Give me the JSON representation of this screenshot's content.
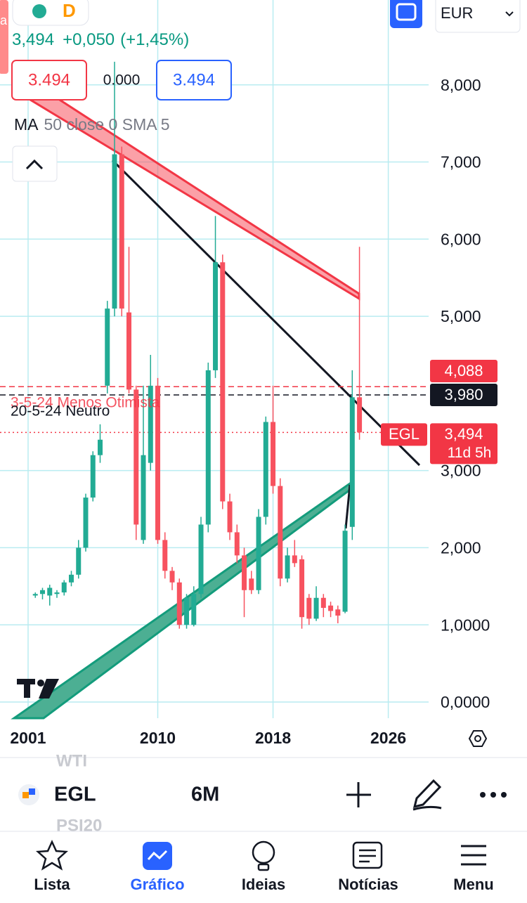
{
  "header": {
    "side_tag": "a",
    "pill_letter": "D",
    "price": "3,494",
    "change": "+0,050",
    "change_pct": "(+1,45%)",
    "bid": "3.494",
    "spread": "0.000",
    "ask": "3.494",
    "indicator_name": "MA",
    "indicator_params": "50 close 0 SMA 5",
    "currency": "EUR"
  },
  "chart_data": {
    "type": "candlestick",
    "x": [
      2001.5,
      2002,
      2002.5,
      2003,
      2003.5,
      2004,
      2004.5,
      2005,
      2005.5,
      2006,
      2006.5,
      2007,
      2007.5,
      2008,
      2008.5,
      2009,
      2009.5,
      2010,
      2010.5,
      2011,
      2011.5,
      2012,
      2012.5,
      2013,
      2013.5,
      2014,
      2014.5,
      2015,
      2015.5,
      2016,
      2016.5,
      2017,
      2017.5,
      2018,
      2018.5,
      2019,
      2019.5,
      2020,
      2020.5,
      2021,
      2021.5,
      2022,
      2022.5,
      2023,
      2023.5,
      2024
    ],
    "open": [
      1.38,
      1.4,
      1.38,
      1.4,
      1.42,
      1.55,
      1.65,
      2.0,
      2.65,
      3.2,
      4.1,
      5.1,
      7.1,
      5.05,
      4.05,
      2.1,
      3.1,
      4.1,
      2.1,
      1.7,
      1.55,
      1.0,
      1.0,
      1.4,
      2.3,
      4.3,
      5.7,
      2.6,
      2.2,
      1.9,
      1.6,
      1.45,
      2.4,
      3.63,
      2.8,
      1.6,
      1.9,
      1.85,
      1.35,
      1.08,
      1.35,
      1.25,
      1.2,
      1.17,
      2.27,
      3.95
    ],
    "high": [
      1.42,
      1.48,
      1.52,
      1.45,
      1.58,
      1.7,
      2.1,
      2.7,
      3.25,
      3.6,
      5.2,
      8.3,
      7.2,
      5.9,
      4.1,
      4.1,
      4.5,
      4.2,
      2.2,
      1.75,
      1.6,
      1.4,
      1.5,
      2.4,
      4.4,
      6.3,
      5.8,
      2.7,
      2.3,
      2.0,
      1.7,
      2.5,
      3.7,
      4.1,
      2.9,
      2.0,
      2.1,
      1.9,
      1.4,
      1.5,
      1.4,
      1.3,
      1.25,
      2.3,
      4.3,
      5.9
    ],
    "low": [
      1.35,
      1.33,
      1.25,
      1.35,
      1.38,
      1.5,
      1.6,
      1.95,
      2.6,
      3.1,
      4.0,
      5.0,
      5.0,
      4.0,
      2.1,
      2.05,
      3.0,
      2.05,
      1.6,
      1.45,
      0.95,
      0.95,
      0.98,
      1.35,
      2.2,
      4.2,
      2.5,
      2.1,
      1.8,
      1.1,
      1.4,
      1.4,
      2.3,
      2.7,
      1.5,
      1.55,
      1.75,
      0.95,
      1.0,
      1.05,
      1.1,
      1.1,
      1.02,
      1.15,
      2.1,
      3.4
    ],
    "close": [
      1.4,
      1.45,
      1.48,
      1.42,
      1.55,
      1.65,
      2.0,
      2.65,
      3.2,
      3.4,
      5.1,
      7.1,
      5.1,
      4.05,
      2.3,
      3.2,
      4.1,
      2.1,
      1.7,
      1.55,
      1.0,
      1.35,
      1.4,
      2.3,
      4.3,
      5.7,
      2.6,
      2.2,
      1.9,
      1.45,
      1.45,
      2.4,
      3.63,
      2.8,
      1.6,
      1.9,
      1.8,
      1.1,
      1.08,
      1.35,
      1.22,
      1.18,
      1.12,
      2.22,
      3.95,
      3.494
    ],
    "up_color": "#22ab94",
    "down_color": "#f7525f",
    "xlim": [
      1999.05,
      2028.8
    ],
    "xticks": [
      2001,
      2010,
      2018,
      2026
    ],
    "ylim": [
      -0.21,
      9.1
    ],
    "yticks": [
      {
        "value": 0,
        "label": "0,0000"
      },
      {
        "value": 1,
        "label": "1,0000"
      },
      {
        "value": 2,
        "label": "2,000"
      },
      {
        "value": 3,
        "label": "3,000"
      },
      {
        "value": 5,
        "label": "5,000"
      },
      {
        "value": 6,
        "label": "6,000"
      },
      {
        "value": 7,
        "label": "7,000"
      },
      {
        "value": 8,
        "label": "8,000"
      }
    ],
    "grid": true,
    "annotations": [
      "3-5-24 Menos Otimista",
      "20-5-24 Neutro"
    ],
    "price_lines": [
      {
        "value": 4.088,
        "label": "4,088",
        "color": "#f23645",
        "style": "dashed"
      },
      {
        "value": 3.98,
        "label": "3,980",
        "color": "#131722",
        "style": "dashed"
      },
      {
        "value": 3.494,
        "label": "3,494",
        "color": "#f23645",
        "style": "dotted",
        "symbol": "EGL",
        "countdown": "11d 5h"
      }
    ]
  },
  "toolbar": {
    "ghost_above": "WTI",
    "symbol": "EGL",
    "interval": "6M",
    "ghost_below": "PSI20"
  },
  "nav": [
    "Lista",
    "Gráfico",
    "Ideias",
    "Notícias",
    "Menu"
  ]
}
